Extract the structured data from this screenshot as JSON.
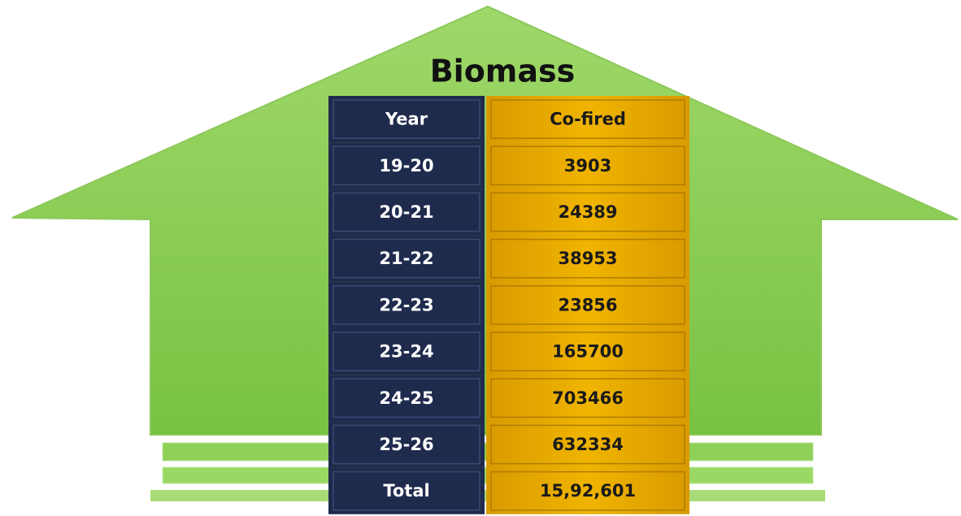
{
  "title": "Biomass",
  "table": {
    "header": [
      "Year",
      "Co-fired"
    ],
    "rows": [
      [
        "19-20",
        "3903"
      ],
      [
        "20-21",
        "24389"
      ],
      [
        "21-22",
        "38953"
      ],
      [
        "22-23",
        "23856"
      ],
      [
        "23-24",
        "165700"
      ],
      [
        "24-25",
        "703466"
      ],
      [
        "25-26",
        "632334"
      ],
      [
        "Total",
        "15,92,601"
      ]
    ]
  }
}
